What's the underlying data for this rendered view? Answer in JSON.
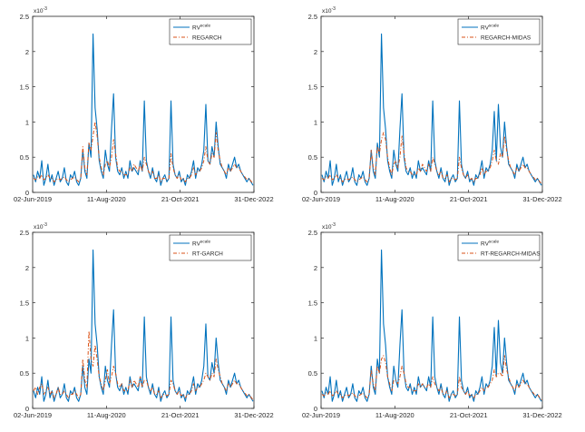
{
  "chart_data": [
    {
      "type": "line",
      "panel": "top-left",
      "y_exponent_label": "x10",
      "y_exponent": "-3",
      "ylim": [
        0,
        2.5
      ],
      "y_ticks": [
        "0",
        "0.5",
        "1",
        "1.5",
        "2",
        "2.5"
      ],
      "x_tick_labels": [
        "02-Jun-2019",
        "11-Aug-2020",
        "21-Oct-2021",
        "31-Dec-2022"
      ],
      "grid": false,
      "legend_position": "top-right",
      "series": [
        {
          "name": "RV",
          "name_sup": "scale",
          "color": "#0072bd",
          "style": "solid",
          "values": [
            0.25,
            0.15,
            0.3,
            0.2,
            0.45,
            0.1,
            0.2,
            0.4,
            0.15,
            0.25,
            0.1,
            0.2,
            0.3,
            0.15,
            0.2,
            0.35,
            0.15,
            0.1,
            0.25,
            0.2,
            0.3,
            0.15,
            0.1,
            0.2,
            0.6,
            0.3,
            0.2,
            0.7,
            0.5,
            2.25,
            1.2,
            0.9,
            0.45,
            0.3,
            0.2,
            0.6,
            0.4,
            0.3,
            0.9,
            1.4,
            0.5,
            0.3,
            0.25,
            0.35,
            0.2,
            0.3,
            0.2,
            0.45,
            0.3,
            0.35,
            0.3,
            0.25,
            0.45,
            0.3,
            1.3,
            0.45,
            0.3,
            0.2,
            0.35,
            0.2,
            0.15,
            0.3,
            0.1,
            0.2,
            0.25,
            0.15,
            0.2,
            1.3,
            0.4,
            0.25,
            0.2,
            0.3,
            0.15,
            0.2,
            0.1,
            0.25,
            0.2,
            0.3,
            0.45,
            0.2,
            0.35,
            0.3,
            0.4,
            0.6,
            1.25,
            0.45,
            0.4,
            0.65,
            0.5,
            1.0,
            0.65,
            0.4,
            0.35,
            0.3,
            0.2,
            0.4,
            0.3,
            0.4,
            0.5,
            0.35,
            0.4,
            0.3,
            0.25,
            0.2,
            0.15,
            0.2,
            0.15,
            0.1
          ]
        },
        {
          "name": "REGARCH",
          "color": "#d95319",
          "style": "dashdot",
          "values": [
            0.2,
            0.18,
            0.22,
            0.2,
            0.25,
            0.18,
            0.2,
            0.25,
            0.2,
            0.2,
            0.15,
            0.18,
            0.2,
            0.18,
            0.2,
            0.22,
            0.18,
            0.15,
            0.18,
            0.2,
            0.22,
            0.18,
            0.15,
            0.2,
            0.65,
            0.35,
            0.25,
            0.7,
            0.6,
            0.8,
            1.0,
            0.8,
            0.5,
            0.35,
            0.25,
            0.4,
            0.45,
            0.35,
            0.5,
            0.75,
            0.55,
            0.35,
            0.3,
            0.3,
            0.25,
            0.25,
            0.25,
            0.35,
            0.3,
            0.4,
            0.35,
            0.3,
            0.4,
            0.3,
            0.5,
            0.4,
            0.3,
            0.25,
            0.3,
            0.2,
            0.2,
            0.25,
            0.15,
            0.2,
            0.2,
            0.18,
            0.2,
            0.55,
            0.35,
            0.25,
            0.2,
            0.25,
            0.18,
            0.2,
            0.15,
            0.2,
            0.2,
            0.25,
            0.35,
            0.25,
            0.3,
            0.3,
            0.35,
            0.45,
            0.65,
            0.45,
            0.4,
            0.55,
            0.5,
            0.85,
            0.6,
            0.45,
            0.35,
            0.3,
            0.25,
            0.35,
            0.3,
            0.35,
            0.4,
            0.35,
            0.35,
            0.3,
            0.25,
            0.22,
            0.18,
            0.2,
            0.16,
            0.12
          ]
        }
      ]
    },
    {
      "type": "line",
      "panel": "top-right",
      "y_exponent_label": "x10",
      "y_exponent": "-3",
      "ylim": [
        0,
        2.5
      ],
      "y_ticks": [
        "0",
        "0.5",
        "1",
        "1.5",
        "2",
        "2.5"
      ],
      "x_tick_labels": [
        "02-Jun-2019",
        "11-Aug-2020",
        "21-Oct-2021",
        "31-Dec-2022"
      ],
      "grid": false,
      "legend_position": "top-right",
      "series": [
        {
          "name": "RV",
          "name_sup": "scale",
          "color": "#0072bd",
          "style": "solid",
          "values": [
            0.25,
            0.15,
            0.3,
            0.2,
            0.45,
            0.1,
            0.2,
            0.4,
            0.15,
            0.25,
            0.1,
            0.2,
            0.3,
            0.15,
            0.2,
            0.35,
            0.15,
            0.1,
            0.25,
            0.2,
            0.3,
            0.15,
            0.1,
            0.2,
            0.6,
            0.3,
            0.2,
            0.7,
            0.5,
            2.25,
            1.2,
            0.9,
            0.45,
            0.3,
            0.2,
            0.6,
            0.4,
            0.3,
            0.9,
            1.4,
            0.5,
            0.3,
            0.25,
            0.35,
            0.2,
            0.3,
            0.2,
            0.45,
            0.3,
            0.35,
            0.3,
            0.25,
            0.45,
            0.3,
            1.3,
            0.45,
            0.3,
            0.2,
            0.35,
            0.2,
            0.15,
            0.3,
            0.1,
            0.2,
            0.25,
            0.15,
            0.2,
            1.3,
            0.4,
            0.25,
            0.2,
            0.3,
            0.15,
            0.2,
            0.1,
            0.25,
            0.2,
            0.3,
            0.45,
            0.2,
            0.35,
            0.3,
            0.4,
            0.6,
            1.15,
            0.45,
            1.25,
            0.65,
            0.5,
            1.0,
            0.65,
            0.4,
            0.35,
            0.3,
            0.2,
            0.4,
            0.3,
            0.4,
            0.5,
            0.35,
            0.4,
            0.3,
            0.25,
            0.2,
            0.15,
            0.2,
            0.15,
            0.1
          ]
        },
        {
          "name": "REGARCH-MIDAS",
          "color": "#d95319",
          "style": "dashdot",
          "values": [
            0.2,
            0.18,
            0.22,
            0.2,
            0.25,
            0.18,
            0.2,
            0.25,
            0.2,
            0.2,
            0.15,
            0.18,
            0.2,
            0.18,
            0.2,
            0.22,
            0.18,
            0.15,
            0.18,
            0.2,
            0.22,
            0.18,
            0.15,
            0.2,
            0.6,
            0.35,
            0.25,
            0.65,
            0.55,
            0.75,
            0.85,
            0.75,
            0.5,
            0.35,
            0.25,
            0.4,
            0.45,
            0.35,
            0.5,
            0.8,
            0.55,
            0.35,
            0.3,
            0.3,
            0.25,
            0.25,
            0.25,
            0.35,
            0.3,
            0.4,
            0.35,
            0.3,
            0.4,
            0.3,
            0.5,
            0.4,
            0.3,
            0.25,
            0.3,
            0.2,
            0.2,
            0.25,
            0.15,
            0.2,
            0.2,
            0.18,
            0.2,
            0.5,
            0.35,
            0.25,
            0.2,
            0.25,
            0.18,
            0.2,
            0.15,
            0.2,
            0.2,
            0.25,
            0.35,
            0.25,
            0.3,
            0.3,
            0.35,
            0.45,
            0.6,
            0.45,
            0.4,
            0.55,
            0.5,
            0.8,
            0.6,
            0.45,
            0.35,
            0.3,
            0.25,
            0.35,
            0.3,
            0.35,
            0.4,
            0.35,
            0.35,
            0.3,
            0.25,
            0.22,
            0.18,
            0.2,
            0.16,
            0.12
          ]
        }
      ]
    },
    {
      "type": "line",
      "panel": "bottom-left",
      "y_exponent_label": "x10",
      "y_exponent": "-3",
      "ylim": [
        0,
        2.5
      ],
      "y_ticks": [
        "0",
        "0.5",
        "1",
        "1.5",
        "2",
        "2.5"
      ],
      "x_tick_labels": [
        "02-Jun-2019",
        "11-Aug-2020",
        "21-Oct-2021",
        "31-Dec-2022"
      ],
      "grid": false,
      "legend_position": "top-right",
      "series": [
        {
          "name": "RV",
          "name_sup": "scale",
          "color": "#0072bd",
          "style": "solid",
          "values": [
            0.25,
            0.15,
            0.3,
            0.2,
            0.45,
            0.1,
            0.2,
            0.4,
            0.15,
            0.25,
            0.1,
            0.2,
            0.3,
            0.15,
            0.2,
            0.35,
            0.15,
            0.1,
            0.25,
            0.2,
            0.3,
            0.15,
            0.1,
            0.2,
            0.6,
            0.3,
            0.2,
            0.7,
            0.5,
            2.25,
            1.2,
            0.9,
            0.45,
            0.3,
            0.2,
            0.6,
            0.4,
            0.3,
            0.9,
            1.4,
            0.5,
            0.3,
            0.25,
            0.35,
            0.2,
            0.3,
            0.2,
            0.45,
            0.3,
            0.35,
            0.3,
            0.25,
            0.45,
            0.3,
            1.3,
            0.45,
            0.3,
            0.2,
            0.35,
            0.2,
            0.15,
            0.3,
            0.1,
            0.2,
            0.25,
            0.15,
            0.2,
            1.3,
            0.4,
            0.25,
            0.2,
            0.3,
            0.15,
            0.2,
            0.1,
            0.25,
            0.2,
            0.3,
            0.45,
            0.2,
            0.35,
            0.3,
            0.4,
            0.6,
            1.2,
            0.45,
            0.4,
            0.65,
            0.5,
            1.0,
            0.65,
            0.4,
            0.35,
            0.3,
            0.2,
            0.4,
            0.3,
            0.4,
            0.5,
            0.35,
            0.4,
            0.3,
            0.25,
            0.2,
            0.15,
            0.2,
            0.15,
            0.1
          ]
        },
        {
          "name": "RT-GARCH",
          "color": "#d95319",
          "style": "dashdot",
          "values": [
            0.25,
            0.3,
            0.2,
            0.3,
            0.35,
            0.2,
            0.25,
            0.3,
            0.2,
            0.25,
            0.15,
            0.2,
            0.3,
            0.2,
            0.2,
            0.25,
            0.2,
            0.15,
            0.2,
            0.2,
            0.25,
            0.2,
            0.15,
            0.2,
            0.7,
            0.4,
            0.3,
            1.1,
            0.7,
            0.6,
            0.9,
            0.7,
            0.45,
            0.35,
            0.25,
            0.4,
            0.55,
            0.35,
            0.45,
            0.6,
            0.5,
            0.35,
            0.3,
            0.35,
            0.25,
            0.25,
            0.25,
            0.4,
            0.3,
            0.4,
            0.35,
            0.3,
            0.45,
            0.3,
            0.4,
            0.4,
            0.3,
            0.25,
            0.3,
            0.2,
            0.2,
            0.25,
            0.15,
            0.2,
            0.2,
            0.18,
            0.2,
            0.4,
            0.35,
            0.25,
            0.2,
            0.25,
            0.18,
            0.2,
            0.15,
            0.2,
            0.2,
            0.25,
            0.35,
            0.25,
            0.3,
            0.3,
            0.35,
            0.4,
            0.5,
            0.45,
            0.4,
            0.5,
            0.45,
            0.7,
            0.55,
            0.45,
            0.35,
            0.3,
            0.25,
            0.35,
            0.3,
            0.35,
            0.4,
            0.35,
            0.35,
            0.3,
            0.25,
            0.22,
            0.18,
            0.2,
            0.16,
            0.12
          ]
        }
      ]
    },
    {
      "type": "line",
      "panel": "bottom-right",
      "y_exponent_label": "x10",
      "y_exponent": "-3",
      "ylim": [
        0,
        2.5
      ],
      "y_ticks": [
        "0",
        "0.5",
        "1",
        "1.5",
        "2",
        "2.5"
      ],
      "x_tick_labels": [
        "02-Jun-2019",
        "11-Aug-2020",
        "21-Oct-2021",
        "31-Dec-2022"
      ],
      "grid": false,
      "legend_position": "top-right",
      "series": [
        {
          "name": "RV",
          "name_sup": "scale",
          "color": "#0072bd",
          "style": "solid",
          "values": [
            0.25,
            0.15,
            0.3,
            0.2,
            0.45,
            0.1,
            0.2,
            0.4,
            0.15,
            0.25,
            0.1,
            0.2,
            0.3,
            0.15,
            0.2,
            0.35,
            0.15,
            0.1,
            0.25,
            0.2,
            0.3,
            0.15,
            0.1,
            0.2,
            0.6,
            0.3,
            0.2,
            0.7,
            0.5,
            2.25,
            1.2,
            0.9,
            0.45,
            0.3,
            0.2,
            0.6,
            0.4,
            0.3,
            0.9,
            1.4,
            0.5,
            0.3,
            0.25,
            0.35,
            0.2,
            0.3,
            0.2,
            0.45,
            0.3,
            0.35,
            0.3,
            0.25,
            0.45,
            0.3,
            1.3,
            0.45,
            0.3,
            0.2,
            0.35,
            0.2,
            0.15,
            0.3,
            0.1,
            0.2,
            0.25,
            0.15,
            0.2,
            1.3,
            0.4,
            0.25,
            0.2,
            0.3,
            0.15,
            0.2,
            0.1,
            0.25,
            0.2,
            0.3,
            0.45,
            0.2,
            0.35,
            0.3,
            0.4,
            0.6,
            1.15,
            0.45,
            1.25,
            0.65,
            0.5,
            1.0,
            0.65,
            0.4,
            0.35,
            0.3,
            0.2,
            0.4,
            0.3,
            0.4,
            0.5,
            0.35,
            0.4,
            0.3,
            0.25,
            0.2,
            0.15,
            0.2,
            0.15,
            0.1
          ]
        },
        {
          "name": "RT-REGARCH-MIDAS",
          "color": "#d95319",
          "style": "dashdot",
          "values": [
            0.2,
            0.18,
            0.22,
            0.2,
            0.25,
            0.18,
            0.2,
            0.25,
            0.2,
            0.2,
            0.15,
            0.18,
            0.2,
            0.18,
            0.2,
            0.22,
            0.18,
            0.15,
            0.18,
            0.2,
            0.22,
            0.18,
            0.15,
            0.2,
            0.55,
            0.35,
            0.25,
            0.6,
            0.5,
            0.7,
            0.75,
            0.65,
            0.45,
            0.35,
            0.25,
            0.4,
            0.4,
            0.35,
            0.45,
            0.6,
            0.5,
            0.35,
            0.3,
            0.3,
            0.25,
            0.25,
            0.25,
            0.35,
            0.3,
            0.35,
            0.3,
            0.3,
            0.35,
            0.3,
            0.45,
            0.35,
            0.3,
            0.25,
            0.3,
            0.2,
            0.2,
            0.25,
            0.15,
            0.2,
            0.2,
            0.18,
            0.2,
            0.45,
            0.3,
            0.25,
            0.2,
            0.25,
            0.18,
            0.2,
            0.15,
            0.2,
            0.2,
            0.25,
            0.3,
            0.25,
            0.3,
            0.3,
            0.35,
            0.4,
            0.55,
            0.45,
            0.5,
            0.5,
            0.45,
            0.75,
            0.55,
            0.45,
            0.35,
            0.3,
            0.25,
            0.35,
            0.3,
            0.35,
            0.4,
            0.35,
            0.35,
            0.3,
            0.25,
            0.22,
            0.18,
            0.2,
            0.16,
            0.12
          ]
        }
      ]
    }
  ]
}
